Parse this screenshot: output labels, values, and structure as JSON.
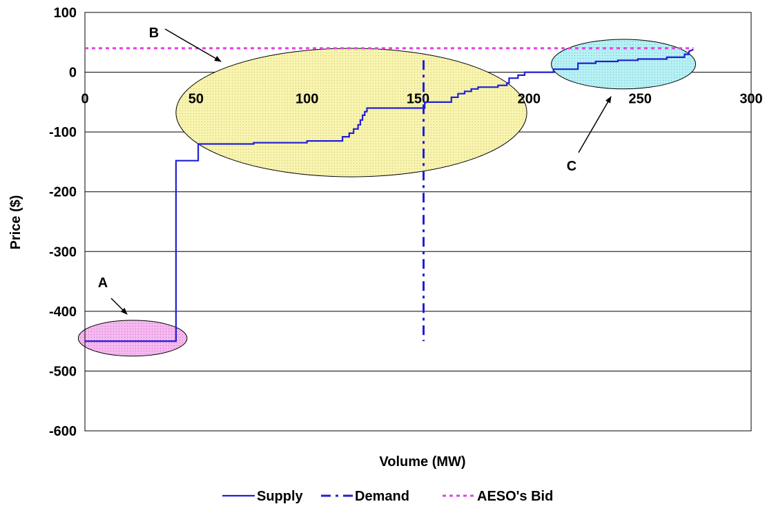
{
  "chart_data": {
    "type": "line",
    "title": "",
    "xlabel": "Volume (MW)",
    "ylabel": "Price ($)",
    "xlim": [
      0,
      300
    ],
    "ylim": [
      -600,
      100
    ],
    "x_ticks": [
      0,
      50,
      100,
      150,
      200,
      250,
      300
    ],
    "y_ticks": [
      100,
      0,
      -100,
      -200,
      -300,
      -400,
      -500,
      -600
    ],
    "grid": "horizontal",
    "legend_position": "bottom",
    "series": [
      {
        "name": "Supply",
        "style": "solid",
        "color": "#1f1fd6",
        "x": [
          0,
          41,
          41,
          51,
          51,
          60,
          76,
          76,
          100,
          100,
          116,
          116,
          119,
          119,
          121,
          121,
          123,
          123,
          124,
          124,
          125,
          125,
          126,
          126,
          127,
          127,
          129,
          129,
          153,
          153,
          165,
          165,
          168,
          168,
          171,
          171,
          174,
          174,
          177,
          177,
          186,
          186,
          190,
          190,
          191,
          191,
          195,
          195,
          198,
          198,
          203,
          203,
          211,
          211,
          222,
          222,
          230,
          230,
          240,
          240,
          249,
          249,
          262,
          262,
          270,
          270,
          272,
          272,
          274
        ],
        "y": [
          -450,
          -450,
          -148,
          -148,
          -120,
          -120,
          -120,
          -118,
          -118,
          -115,
          -115,
          -108,
          -108,
          -102,
          -102,
          -95,
          -95,
          -88,
          -88,
          -80,
          -80,
          -72,
          -72,
          -66,
          -66,
          -60,
          -60,
          -60,
          -60,
          -50,
          -50,
          -42,
          -42,
          -36,
          -36,
          -32,
          -32,
          -28,
          -28,
          -25,
          -25,
          -22,
          -22,
          -18,
          -18,
          -10,
          -10,
          -5,
          -5,
          0,
          0,
          0,
          0,
          5,
          5,
          15,
          15,
          18,
          18,
          20,
          20,
          22,
          22,
          25,
          25,
          30,
          30,
          35,
          38
        ]
      },
      {
        "name": "Demand",
        "style": "dash-dot",
        "color": "#1f1fd6",
        "x": [
          152.5,
          152.5
        ],
        "y": [
          20,
          -450
        ]
      },
      {
        "name": "AESO's Bid",
        "style": "dotted",
        "color": "#e640e6",
        "x": [
          0,
          274
        ],
        "y": [
          40,
          40
        ]
      }
    ],
    "annotations": [
      {
        "label": "A",
        "region_x": [
          -3,
          46
        ],
        "region_y": [
          -415,
          -475
        ],
        "fill": "#f0a8e8"
      },
      {
        "label": "B",
        "region_x": [
          41,
          199
        ],
        "region_y": [
          40,
          -175
        ],
        "fill": "#f4f0a0"
      },
      {
        "label": "C",
        "region_x": [
          210,
          275
        ],
        "region_y": [
          55,
          -28
        ],
        "fill": "#a8e8f0"
      }
    ]
  }
}
